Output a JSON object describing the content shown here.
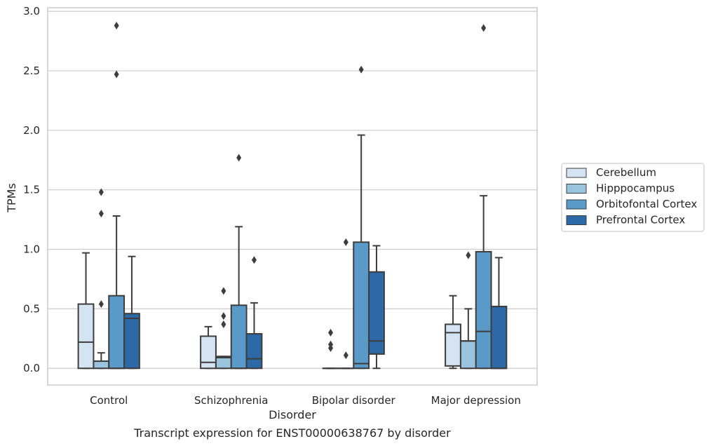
{
  "chart_data": {
    "type": "box",
    "title": "Transcript expression for ENST00000638767 by disorder",
    "xlabel": "Disorder",
    "ylabel": "TPMs",
    "ylim": [
      -0.14,
      3.03
    ],
    "yticks": [
      "0.0",
      "0.5",
      "1.0",
      "1.5",
      "2.0",
      "2.5",
      "3.0"
    ],
    "grid": true,
    "legend_placement": "right",
    "categories": [
      "Control",
      "Schizophrenia",
      "Bipolar disorder",
      "Major depression"
    ],
    "series": [
      {
        "name": "Cerebellum",
        "color": "#d4e4f3",
        "boxes": [
          {
            "whisker_low": 0.0,
            "q1": 0.0,
            "median": 0.22,
            "q3": 0.54,
            "whisker_high": 0.97,
            "outliers": []
          },
          {
            "whisker_low": 0.0,
            "q1": 0.0,
            "median": 0.05,
            "q3": 0.27,
            "whisker_high": 0.35,
            "outliers": []
          },
          {
            "whisker_low": 0.0,
            "q1": 0.0,
            "median": 0.0,
            "q3": 0.0,
            "whisker_high": 0.0,
            "outliers": [
              0.17,
              0.2,
              0.3
            ]
          },
          {
            "whisker_low": 0.0,
            "q1": 0.02,
            "median": 0.3,
            "q3": 0.37,
            "whisker_high": 0.61,
            "outliers": []
          }
        ]
      },
      {
        "name": "Hipppocampus",
        "color": "#9ac4de",
        "boxes": [
          {
            "whisker_low": 0.0,
            "q1": 0.0,
            "median": 0.06,
            "q3": 0.06,
            "whisker_high": 0.13,
            "outliers": [
              0.54,
              1.3,
              1.48
            ]
          },
          {
            "whisker_low": 0.0,
            "q1": 0.0,
            "median": 0.09,
            "q3": 0.1,
            "whisker_high": 0.1,
            "outliers": [
              0.37,
              0.44,
              0.65
            ]
          },
          {
            "whisker_low": 0.0,
            "q1": 0.0,
            "median": 0.0,
            "q3": 0.0,
            "whisker_high": 0.0,
            "outliers": [
              0.11,
              1.06
            ]
          },
          {
            "whisker_low": 0.0,
            "q1": 0.0,
            "median": 0.23,
            "q3": 0.23,
            "whisker_high": 0.5,
            "outliers": [
              0.95
            ]
          }
        ]
      },
      {
        "name": "Orbitofontal Cortex",
        "color": "#5a9ac8",
        "boxes": [
          {
            "whisker_low": 0.0,
            "q1": 0.0,
            "median": 0.0,
            "q3": 0.61,
            "whisker_high": 1.28,
            "outliers": [
              2.47,
              2.88
            ]
          },
          {
            "whisker_low": 0.0,
            "q1": 0.0,
            "median": 0.0,
            "q3": 0.53,
            "whisker_high": 1.19,
            "outliers": [
              1.77
            ]
          },
          {
            "whisker_low": 0.0,
            "q1": 0.0,
            "median": 0.04,
            "q3": 1.06,
            "whisker_high": 1.96,
            "outliers": [
              2.51
            ]
          },
          {
            "whisker_low": 0.0,
            "q1": 0.0,
            "median": 0.31,
            "q3": 0.98,
            "whisker_high": 1.45,
            "outliers": [
              2.86
            ]
          }
        ]
      },
      {
        "name": "Prefrontal Cortex",
        "color": "#2c69a6",
        "boxes": [
          {
            "whisker_low": 0.0,
            "q1": 0.0,
            "median": 0.42,
            "q3": 0.46,
            "whisker_high": 0.94,
            "outliers": []
          },
          {
            "whisker_low": 0.0,
            "q1": 0.0,
            "median": 0.08,
            "q3": 0.29,
            "whisker_high": 0.55,
            "outliers": [
              0.91
            ]
          },
          {
            "whisker_low": 0.0,
            "q1": 0.12,
            "median": 0.23,
            "q3": 0.81,
            "whisker_high": 1.03,
            "outliers": []
          },
          {
            "whisker_low": 0.0,
            "q1": 0.0,
            "median": 0.0,
            "q3": 0.52,
            "whisker_high": 0.93,
            "outliers": []
          }
        ]
      }
    ]
  }
}
